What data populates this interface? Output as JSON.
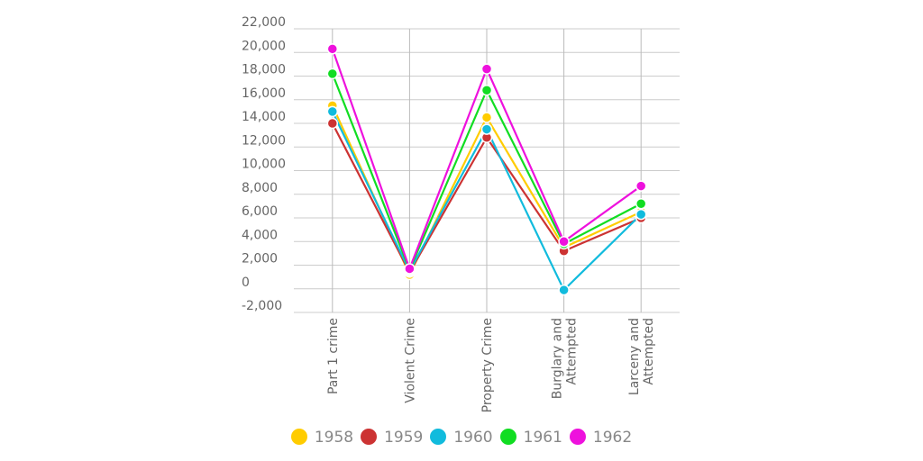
{
  "chart_data": {
    "type": "line",
    "categories": [
      [
        "Part 1 crime"
      ],
      [
        "Violent Crime"
      ],
      [
        "Property Crime"
      ],
      [
        "Burglary and",
        "Attempted"
      ],
      [
        "Larceny and",
        "Attempted"
      ]
    ],
    "ylim": [
      -2000,
      22000
    ],
    "ytick_step": 2000,
    "ytick_labels": [
      "-2,000",
      "0",
      "2,000",
      "4,000",
      "6,000",
      "8,000",
      "10,000",
      "12,000",
      "14,000",
      "16,000",
      "18,000",
      "20,000",
      "22,000"
    ],
    "grid": true,
    "legend_position": "bottom",
    "series": [
      {
        "name": "1958",
        "color": "#ffcc00",
        "values": [
          15500,
          1200,
          14500,
          3500,
          6500
        ]
      },
      {
        "name": "1959",
        "color": "#cc3333",
        "values": [
          14000,
          1400,
          12800,
          3200,
          6000
        ]
      },
      {
        "name": "1960",
        "color": "#11bbdd",
        "values": [
          15000,
          1500,
          13500,
          -100,
          6300
        ]
      },
      {
        "name": "1961",
        "color": "#11dd22",
        "values": [
          18200,
          1600,
          16800,
          3800,
          7200
        ]
      },
      {
        "name": "1962",
        "color": "#ee11dd",
        "values": [
          20300,
          1700,
          18600,
          4000,
          8700
        ]
      }
    ]
  }
}
